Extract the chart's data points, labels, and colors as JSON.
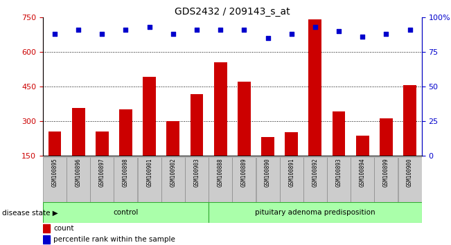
{
  "title": "GDS2432 / 209143_s_at",
  "samples": [
    "GSM100895",
    "GSM100896",
    "GSM100897",
    "GSM100898",
    "GSM100901",
    "GSM100902",
    "GSM100903",
    "GSM100888",
    "GSM100889",
    "GSM100890",
    "GSM100891",
    "GSM100892",
    "GSM100893",
    "GSM100894",
    "GSM100899",
    "GSM100900"
  ],
  "bar_values": [
    255,
    355,
    255,
    350,
    490,
    300,
    415,
    555,
    470,
    230,
    250,
    740,
    340,
    235,
    310,
    455
  ],
  "percentile_values": [
    88,
    91,
    88,
    91,
    93,
    88,
    91,
    91,
    91,
    85,
    88,
    93,
    90,
    86,
    88,
    91
  ],
  "bar_color": "#cc0000",
  "dot_color": "#0000cc",
  "ylim_left": [
    150,
    750
  ],
  "ylim_right": [
    0,
    100
  ],
  "yticks_left": [
    150,
    300,
    450,
    600,
    750
  ],
  "yticks_right": [
    0,
    25,
    50,
    75,
    100
  ],
  "right_ytick_labels": [
    "0",
    "25",
    "50",
    "75",
    "100%"
  ],
  "grid_values": [
    300,
    450,
    600
  ],
  "control_count": 7,
  "disease_label_control": "control",
  "disease_label_pituitary": "pituitary adenoma predisposition",
  "disease_state_label": "disease state",
  "legend_bar": "count",
  "legend_dot": "percentile rank within the sample",
  "background_color": "#ffffff",
  "group_bg_color": "#aaffaa",
  "tick_label_bg": "#cccccc",
  "title_fontsize": 10,
  "axis_fontsize": 8
}
